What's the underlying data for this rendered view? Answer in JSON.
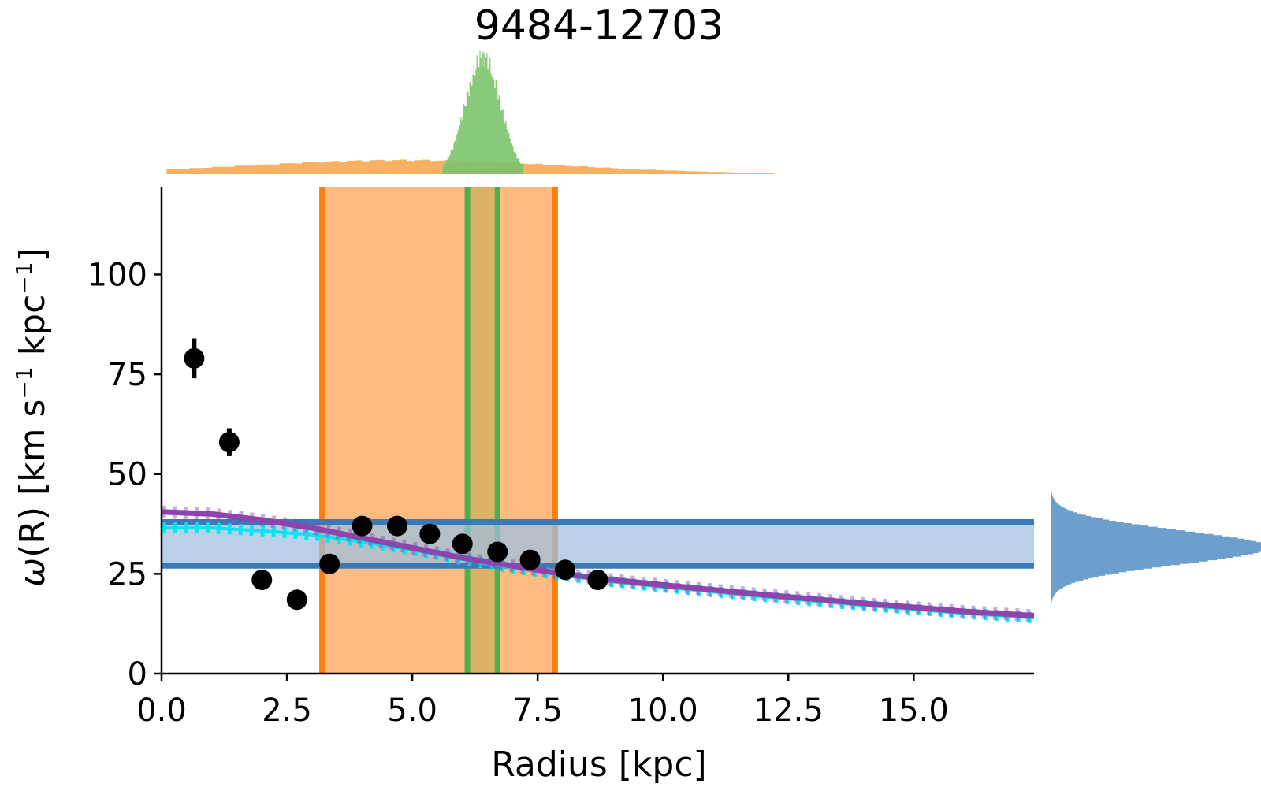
{
  "chart_data": {
    "type": "scatter",
    "title": "9484-12703",
    "xlabel": "Radius [kpc]",
    "ylabel_parts": {
      "symbol": "ω",
      "arg": "(R)",
      "units_prefix": " [km s",
      "sup1": "−1",
      "units_mid": " kpc",
      "sup2": "−1",
      "units_suffix": "]"
    },
    "xlim": [
      0,
      17.4
    ],
    "ylim": [
      0,
      122
    ],
    "xticks": [
      0.0,
      2.5,
      5.0,
      7.5,
      10.0,
      12.5,
      15.0
    ],
    "xtick_labels": [
      "0.0",
      "2.5",
      "5.0",
      "7.5",
      "10.0",
      "12.5",
      "15.0"
    ],
    "yticks": [
      0,
      25,
      50,
      75,
      100
    ],
    "ytick_labels": [
      "0",
      "25",
      "50",
      "75",
      "100"
    ],
    "points": {
      "x": [
        0.65,
        1.35,
        2.0,
        2.7,
        3.35,
        4.0,
        4.7,
        5.35,
        6.0,
        6.7,
        7.35,
        8.05,
        8.7
      ],
      "y": [
        79,
        58,
        23.5,
        18.5,
        27.5,
        37,
        37,
        35,
        32.5,
        30.5,
        28.5,
        26,
        23.5
      ],
      "yerr": [
        5,
        3.5,
        1,
        1,
        1,
        1,
        1,
        1,
        1,
        1,
        1,
        1,
        1
      ]
    },
    "bands": [
      {
        "orientation": "vertical",
        "from": 3.2,
        "to": 7.85,
        "color": "#ff7f0e"
      },
      {
        "orientation": "vertical",
        "from": 6.1,
        "to": 6.7,
        "color": "#2ca02c"
      },
      {
        "orientation": "horizontal",
        "from": 27,
        "to": 38,
        "color": "#1f77b4"
      }
    ],
    "model_curves": {
      "x": [
        0.0,
        1.0,
        2.0,
        3.0,
        4.0,
        5.0,
        6.0,
        7.0,
        8.0,
        9.0,
        10.0,
        11.0,
        12.0,
        13.0,
        14.0,
        15.0,
        16.0,
        17.4
      ],
      "purple": [
        40.5,
        40,
        38.5,
        36.5,
        34,
        31.5,
        29,
        27,
        25,
        23.5,
        22.2,
        21,
        19.8,
        18.7,
        17.6,
        16.6,
        15.6,
        14.5
      ],
      "cyan": [
        36.5,
        36.5,
        35.8,
        34.8,
        33,
        31,
        28.6,
        26.5,
        24.6,
        23,
        21.7,
        20.5,
        19.3,
        18.2,
        17.1,
        16.1,
        15.1,
        14
      ]
    },
    "top_histograms": [
      {
        "name": "orange",
        "color": "#f5a34a",
        "center": 4.8,
        "sigma": 3.2,
        "height": 0.12,
        "range": [
          0.1,
          12.2
        ]
      },
      {
        "name": "green",
        "color": "#7cc36b",
        "center": 6.4,
        "sigma": 0.35,
        "height": 1.0,
        "range": [
          5.6,
          7.2
        ]
      }
    ],
    "right_histogram": {
      "color": "#6c9fcb",
      "center": 31.5,
      "sigma": 4.2,
      "range": [
        11,
        55
      ]
    },
    "colors": {
      "points": "#000000",
      "purple": "#8e44ad",
      "cyan": "#00e5ee",
      "orange_line": "#ff7f0e",
      "orange_fill": "#fdbb81",
      "green_line": "#4caf50",
      "green_fill": "#d6b062",
      "blue_line": "#3a7ab8",
      "blue_fill": "#9dbfdf"
    }
  }
}
